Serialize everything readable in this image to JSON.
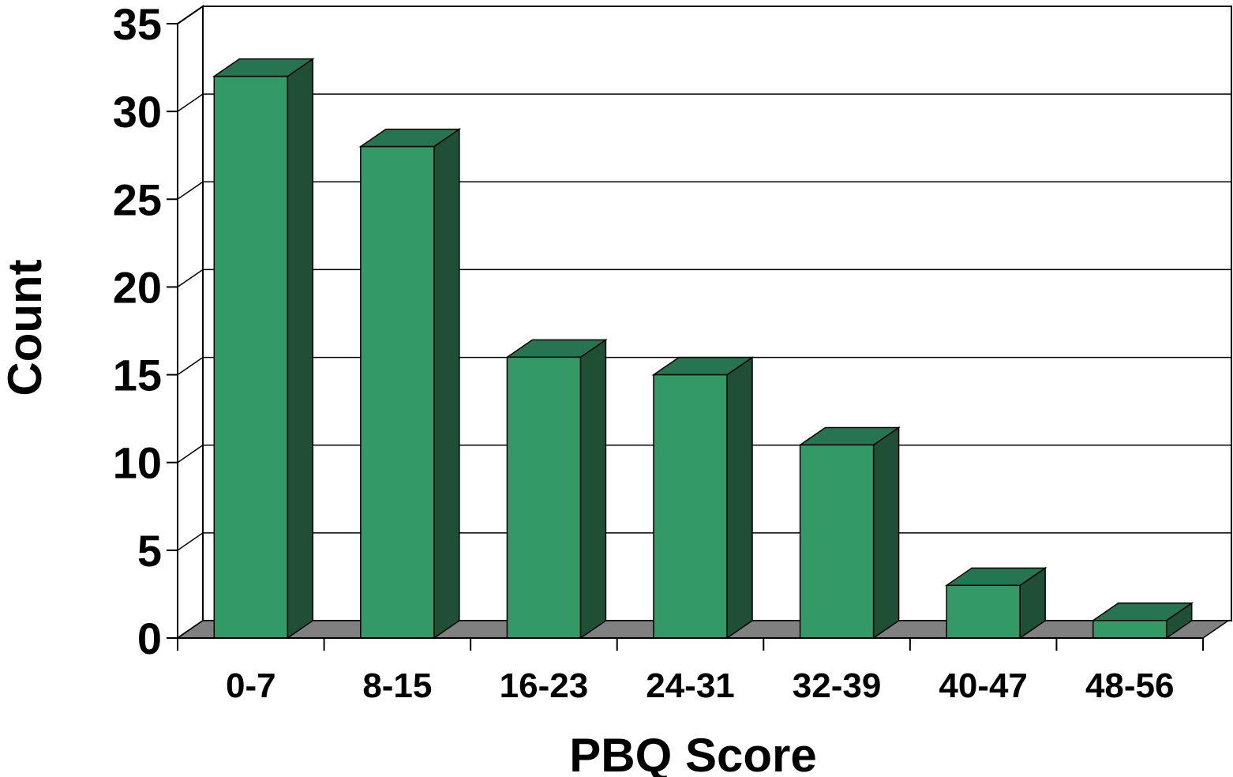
{
  "chart_data": {
    "type": "bar",
    "style": "3d-column",
    "title": "",
    "xlabel": "PBQ Score",
    "ylabel": "Count",
    "categories": [
      "0-7",
      "8-15",
      "16-23",
      "24-31",
      "32-39",
      "40-47",
      "48-56"
    ],
    "series": [
      {
        "values": [
          32,
          28,
          16,
          15,
          11,
          3,
          1
        ]
      }
    ],
    "ylim": [
      0,
      35
    ],
    "yticks": [
      "0",
      "5",
      "10",
      "15",
      "20",
      "25",
      "30",
      "35"
    ],
    "grid": true,
    "legend": "none",
    "colors": {
      "bar_front": "#339966",
      "bar_top": "#267550",
      "bar_side": "#1f4f35",
      "floor": "#808080",
      "gridline": "#000000",
      "background": "#ffffff"
    }
  }
}
